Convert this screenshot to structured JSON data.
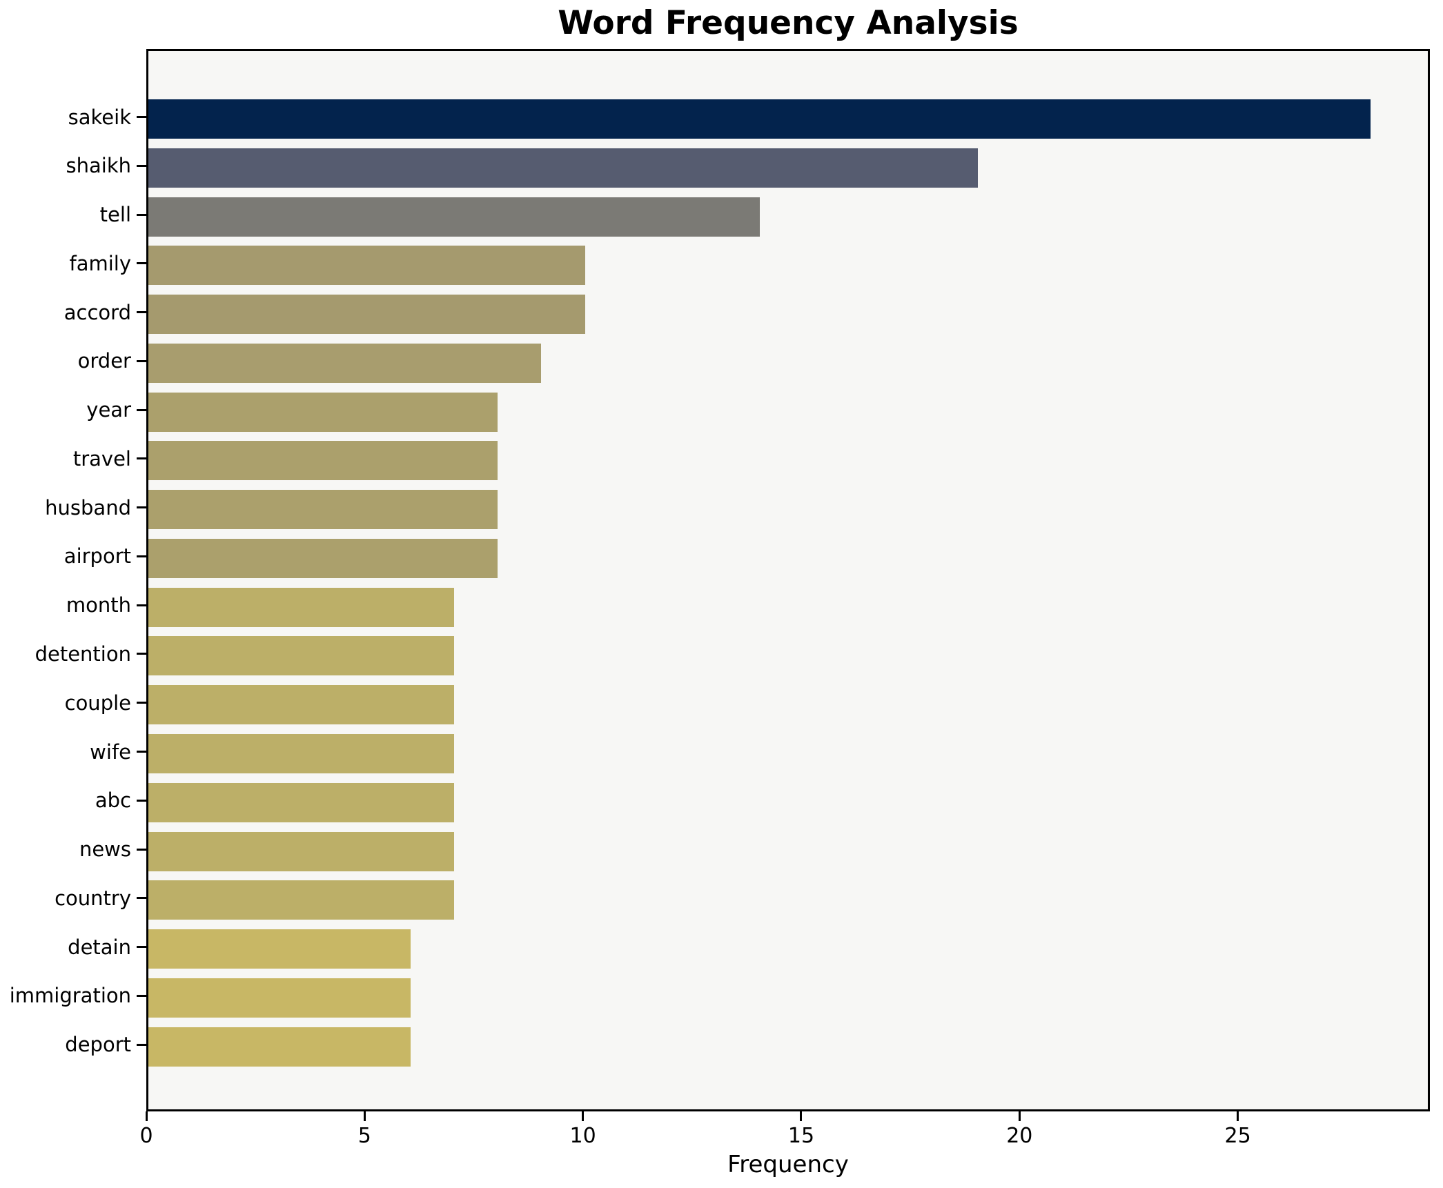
{
  "title": "Word Frequency Analysis",
  "chart_data": {
    "type": "bar",
    "orientation": "horizontal",
    "title": "Word Frequency Analysis",
    "xlabel": "Frequency",
    "ylabel": "",
    "categories": [
      "sakeik",
      "shaikh",
      "tell",
      "family",
      "accord",
      "order",
      "year",
      "travel",
      "husband",
      "airport",
      "month",
      "detention",
      "couple",
      "wife",
      "abc",
      "news",
      "country",
      "detain",
      "immigration",
      "deport"
    ],
    "values": [
      28,
      19,
      14,
      10,
      10,
      9,
      8,
      8,
      8,
      8,
      7,
      7,
      7,
      7,
      7,
      7,
      7,
      6,
      6,
      6
    ],
    "bar_colors": [
      "#03234d",
      "#565c70",
      "#7b7a75",
      "#a59a6e",
      "#a59a6e",
      "#a89d6e",
      "#aba06c",
      "#aba06c",
      "#aba06c",
      "#aba06c",
      "#bcaf68",
      "#bcaf68",
      "#bcaf68",
      "#bcaf68",
      "#bcaf68",
      "#bcaf68",
      "#bcaf68",
      "#c8b765",
      "#c8b765",
      "#c8b765"
    ],
    "xticks": [
      0,
      5,
      10,
      15,
      20,
      25
    ],
    "xlim": [
      0,
      29.4
    ],
    "grid": false,
    "legend": "none",
    "plot_background": "#f7f7f5",
    "figure_background": "#ffffff",
    "spine_color": "#000000"
  }
}
